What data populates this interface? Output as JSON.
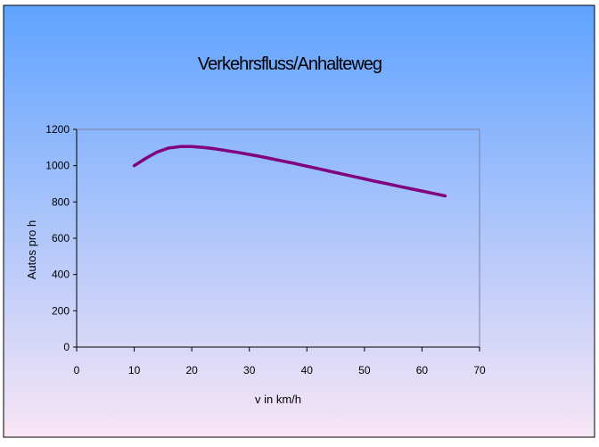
{
  "chart_data": {
    "type": "line",
    "title": "Verkehrsfluss/Anhalteweg",
    "xlabel": "v in km/h",
    "ylabel": "Autos pro h",
    "xlim": [
      0,
      70
    ],
    "ylim": [
      0,
      1200
    ],
    "x_ticks": [
      0,
      10,
      20,
      30,
      40,
      50,
      60,
      70
    ],
    "y_ticks": [
      0,
      200,
      400,
      600,
      800,
      1000,
      1200
    ],
    "grid": false,
    "legend": "none",
    "series": [
      {
        "color": "#800080",
        "x": [
          10,
          12,
          14,
          16,
          18,
          20,
          22,
          24,
          26,
          28,
          30,
          32,
          34,
          36,
          38,
          40,
          42,
          44,
          46,
          48,
          50,
          52,
          54,
          56,
          58,
          60,
          62,
          64
        ],
        "y": [
          1000,
          1040,
          1075,
          1097,
          1105,
          1105,
          1100,
          1093,
          1083,
          1073,
          1062,
          1050,
          1037,
          1024,
          1011,
          997,
          983,
          969,
          955,
          941,
          927,
          913,
          900,
          886,
          873,
          860,
          847,
          833
        ]
      }
    ]
  },
  "colors": {
    "background_top": "#5fa3ff",
    "background_bottom": "#f8e6f6",
    "plot_border": "#8080a0",
    "axis": "#000000",
    "line": "#800080"
  }
}
